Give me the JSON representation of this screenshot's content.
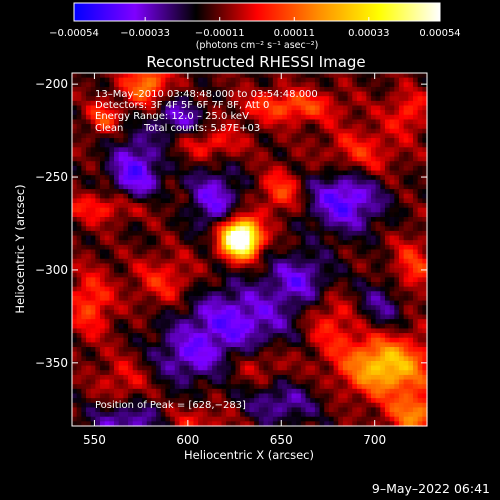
{
  "chart_data": {
    "type": "heatmap",
    "title": "Reconstructed RHESSI Image",
    "xlabel": "Heliocentric X (arcsec)",
    "ylabel": "Heliocentric Y (arcsec)",
    "xlim": [
      538,
      728
    ],
    "ylim": [
      -384,
      -194
    ],
    "x_ticks": [
      550,
      600,
      650,
      700
    ],
    "y_ticks": [
      -200,
      -250,
      -300,
      -350
    ],
    "x_tick_labels": [
      "550",
      "600",
      "650",
      "700"
    ],
    "y_tick_labels": [
      "−200",
      "−250",
      "−300",
      "−350"
    ],
    "colorbar": {
      "range": [
        -0.00054,
        0.00054
      ],
      "ticks": [
        -0.00054,
        -0.00033,
        -0.00011,
        0.00011,
        0.00033,
        0.00054
      ],
      "tick_labels": [
        "−0.00054",
        "−0.00033",
        "−0.00011",
        "0.00011",
        "0.00033",
        "0.00054"
      ],
      "unit_label": "(photons cm⁻² s⁻¹ asec⁻²)",
      "colors": [
        "#0000ff",
        "#7f00ff",
        "#000000",
        "#ff0000",
        "#ff8c00",
        "#ffff00",
        "#ffffff"
      ]
    },
    "annotations": [
      "13–May–2010 03:48:48.000 to 03:54:48.000",
      "Detectors: 3F 4F 5F 6F 7F 8F, Att 0",
      "Energy Range: 12.0 – 25.0 keV",
      "Clean",
      "Total counts: 5.87E+03"
    ],
    "peak_label": "Position of Peak = [628,−283]",
    "peak": [
      628,
      -283
    ],
    "sources": [
      {
        "x": 628,
        "y": -283,
        "amp": 0.0009,
        "sx": 7,
        "sy": 7
      },
      {
        "x": 706,
        "y": -352,
        "amp": 0.00042,
        "sx": 16,
        "sy": 11
      },
      {
        "x": 722,
        "y": -378,
        "amp": 0.00028,
        "sx": 10,
        "sy": 8
      },
      {
        "x": 578,
        "y": -200,
        "amp": 0.0003,
        "sx": 8,
        "sy": 8
      },
      {
        "x": 555,
        "y": -218,
        "amp": 0.0002,
        "sx": 6,
        "sy": 6
      },
      {
        "x": 655,
        "y": -212,
        "amp": 0.00022,
        "sx": 18,
        "sy": 6
      },
      {
        "x": 612,
        "y": -232,
        "amp": 0.00016,
        "sx": 12,
        "sy": 6
      },
      {
        "x": 560,
        "y": -266,
        "amp": 0.00018,
        "sx": 18,
        "sy": 6
      },
      {
        "x": 650,
        "y": -258,
        "amp": 0.0002,
        "sx": 8,
        "sy": 8
      },
      {
        "x": 692,
        "y": -238,
        "amp": 0.00017,
        "sx": 14,
        "sy": 10
      },
      {
        "x": 718,
        "y": -215,
        "amp": 0.00016,
        "sx": 8,
        "sy": 8
      },
      {
        "x": 548,
        "y": -318,
        "amp": 0.0002,
        "sx": 8,
        "sy": 12
      },
      {
        "x": 588,
        "y": -307,
        "amp": 0.00016,
        "sx": 12,
        "sy": 10
      },
      {
        "x": 676,
        "y": -328,
        "amp": 0.00016,
        "sx": 10,
        "sy": 12
      },
      {
        "x": 720,
        "y": -300,
        "amp": 0.00018,
        "sx": 8,
        "sy": 12
      },
      {
        "x": 566,
        "y": -360,
        "amp": 0.00012,
        "sx": 10,
        "sy": 10
      },
      {
        "x": 638,
        "y": -350,
        "amp": 0.00013,
        "sx": 12,
        "sy": 8
      },
      {
        "x": 604,
        "y": -382,
        "amp": 0.00012,
        "sx": 14,
        "sy": 6
      },
      {
        "x": 572,
        "y": -248,
        "amp": -0.00028,
        "sx": 10,
        "sy": 14
      },
      {
        "x": 614,
        "y": -262,
        "amp": -0.00024,
        "sx": 10,
        "sy": 12
      },
      {
        "x": 684,
        "y": -262,
        "amp": -0.0003,
        "sx": 14,
        "sy": 12
      },
      {
        "x": 625,
        "y": -328,
        "amp": -0.00026,
        "sx": 22,
        "sy": 14
      },
      {
        "x": 600,
        "y": -348,
        "amp": -0.00018,
        "sx": 14,
        "sy": 10
      },
      {
        "x": 568,
        "y": -382,
        "amp": -0.00022,
        "sx": 14,
        "sy": 8
      },
      {
        "x": 650,
        "y": -372,
        "amp": -0.00018,
        "sx": 14,
        "sy": 8
      },
      {
        "x": 705,
        "y": -318,
        "amp": -0.00016,
        "sx": 10,
        "sy": 10
      },
      {
        "x": 660,
        "y": -305,
        "amp": -0.00022,
        "sx": 12,
        "sy": 10
      },
      {
        "x": 595,
        "y": -218,
        "amp": -0.0002,
        "sx": 10,
        "sy": 8
      }
    ]
  },
  "timestamp": "9–May–2022 06:41"
}
